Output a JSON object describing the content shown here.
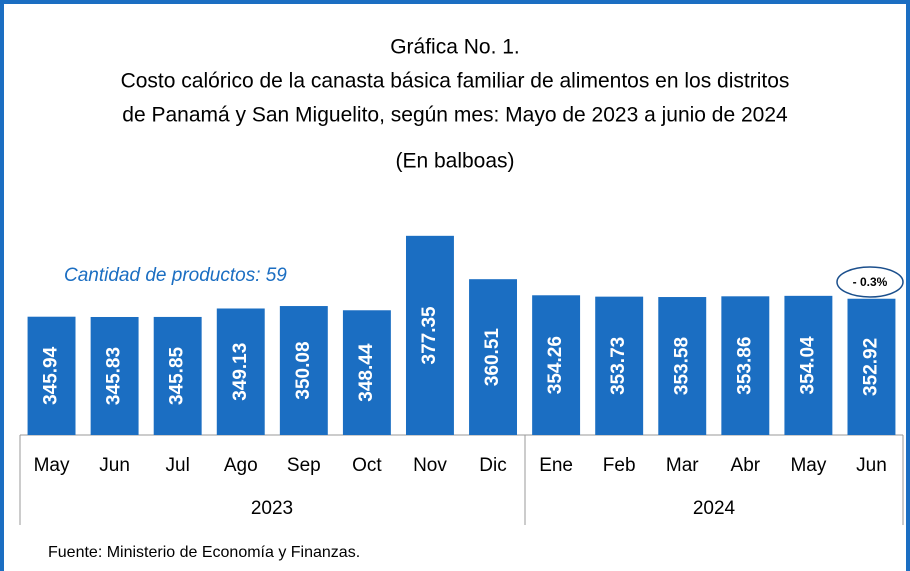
{
  "chart_data": {
    "type": "bar",
    "title": "Gráfica No.  1.",
    "title_lines": [
      "Costo calórico de la canasta básica familiar de alimentos en los distritos",
      "de Panamá y San Miguelito, según mes: Mayo de 2023 a junio de 2024"
    ],
    "subtitle": "(En balboas)",
    "annotations": [
      "Cantidad de productos: 59",
      "- 0.3%"
    ],
    "source": "Fuente: Ministerio de Economía y Finanzas.",
    "categories": [
      "May",
      "Jun",
      "Jul",
      "Ago",
      "Sep",
      "Oct",
      "Nov",
      "Dic",
      "Ene",
      "Feb",
      "Mar",
      "Abr",
      "May",
      "Jun"
    ],
    "groups": [
      "2023",
      "2024"
    ],
    "values": [
      345.94,
      345.83,
      345.85,
      349.13,
      350.08,
      348.44,
      377.35,
      360.51,
      354.26,
      353.73,
      353.58,
      353.86,
      354.04,
      352.92
    ],
    "color": "#1b6ec2",
    "ylim": [
      300,
      380
    ]
  }
}
